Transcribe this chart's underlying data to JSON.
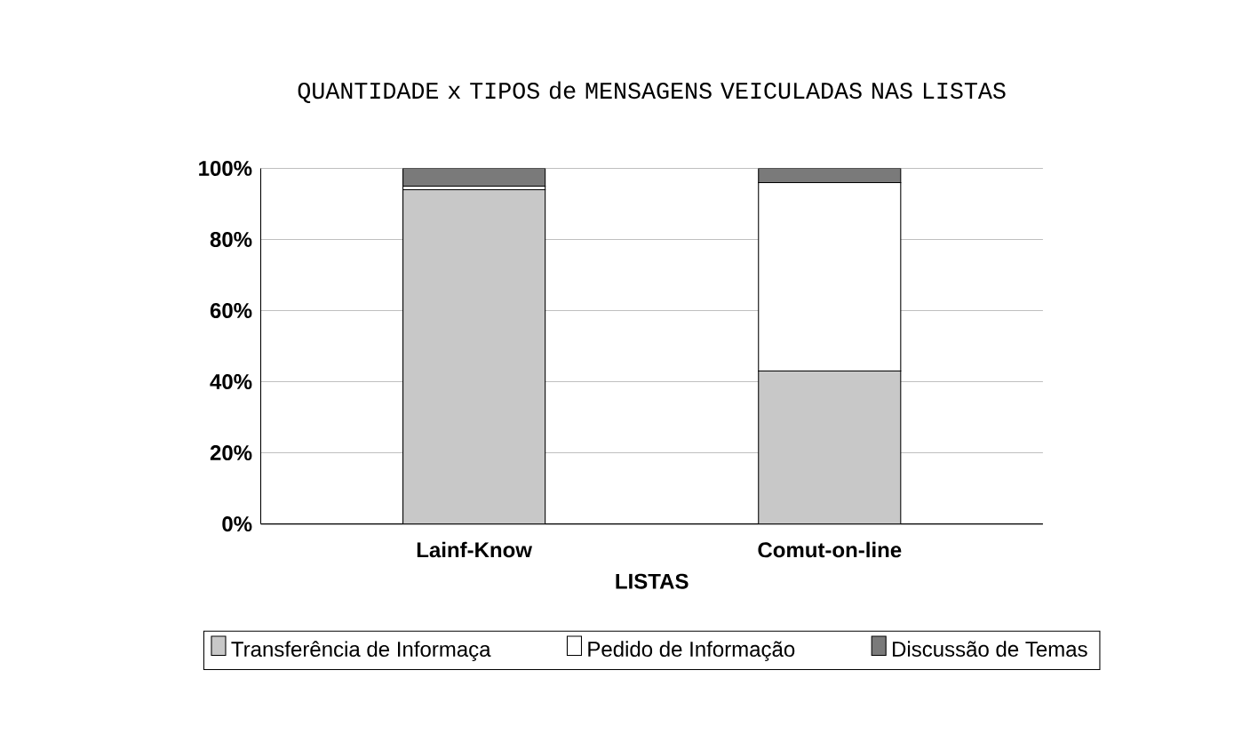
{
  "chart_data": {
    "type": "bar",
    "stacked": true,
    "title": "QUANTIDADE x TIPOS de MENSAGENS VEICULADAS NAS LISTAS",
    "xlabel": "LISTAS",
    "categories": [
      "Lainf-Know",
      "Comut-on-line"
    ],
    "series": [
      {
        "name": "Transferência de Informaça",
        "color": "#c8c8c8",
        "values": [
          94,
          43
        ]
      },
      {
        "name": "Pedido de Informação",
        "color": "#ffffff",
        "values": [
          1,
          53
        ]
      },
      {
        "name": "Discussão de Temas",
        "color": "#7a7a7a",
        "values": [
          5,
          4
        ]
      }
    ],
    "ylim": [
      0,
      100
    ],
    "yticks": [
      {
        "value": 0,
        "label": "0%"
      },
      {
        "value": 20,
        "label": "20%"
      },
      {
        "value": 40,
        "label": "40%"
      },
      {
        "value": 60,
        "label": "60%"
      },
      {
        "value": 80,
        "label": "80%"
      },
      {
        "value": 100,
        "label": "100%"
      }
    ],
    "grid": "y",
    "legend": "bottom"
  }
}
